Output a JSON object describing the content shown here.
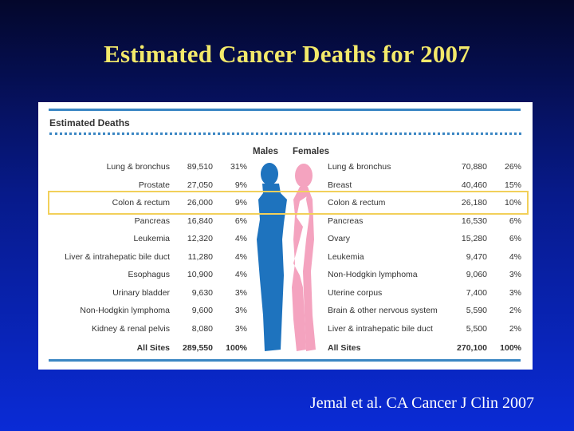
{
  "slide": {
    "title": "Estimated Cancer Deaths for 2007",
    "citation": "Jemal et al. CA Cancer J Clin 2007"
  },
  "chart_data": {
    "type": "table",
    "title": "Estimated Deaths",
    "columns": [
      "Males",
      "Females"
    ],
    "highlighted_row": "Colon & rectum",
    "colors": {
      "male_figure": "#1e73be",
      "female_figure": "#f4a3bf",
      "rule": "#3a86c3",
      "highlight": "#f2d05a"
    },
    "males": [
      {
        "site": "Lung & bronchus",
        "deaths": "89,510",
        "percent": "31%"
      },
      {
        "site": "Prostate",
        "deaths": "27,050",
        "percent": "9%"
      },
      {
        "site": "Colon & rectum",
        "deaths": "26,000",
        "percent": "9%"
      },
      {
        "site": "Pancreas",
        "deaths": "16,840",
        "percent": "6%"
      },
      {
        "site": "Leukemia",
        "deaths": "12,320",
        "percent": "4%"
      },
      {
        "site": "Liver & intrahepatic bile duct",
        "deaths": "11,280",
        "percent": "4%"
      },
      {
        "site": "Esophagus",
        "deaths": "10,900",
        "percent": "4%"
      },
      {
        "site": "Urinary bladder",
        "deaths": "9,630",
        "percent": "3%"
      },
      {
        "site": "Non-Hodgkin lymphoma",
        "deaths": "9,600",
        "percent": "3%"
      },
      {
        "site": "Kidney & renal pelvis",
        "deaths": "8,080",
        "percent": "3%"
      },
      {
        "site": "All Sites",
        "deaths": "289,550",
        "percent": "100%"
      }
    ],
    "females": [
      {
        "site": "Lung & bronchus",
        "deaths": "70,880",
        "percent": "26%"
      },
      {
        "site": "Breast",
        "deaths": "40,460",
        "percent": "15%"
      },
      {
        "site": "Colon & rectum",
        "deaths": "26,180",
        "percent": "10%"
      },
      {
        "site": "Pancreas",
        "deaths": "16,530",
        "percent": "6%"
      },
      {
        "site": "Ovary",
        "deaths": "15,280",
        "percent": "6%"
      },
      {
        "site": "Leukemia",
        "deaths": "9,470",
        "percent": "4%"
      },
      {
        "site": "Non-Hodgkin lymphoma",
        "deaths": "9,060",
        "percent": "3%"
      },
      {
        "site": "Uterine corpus",
        "deaths": "7,400",
        "percent": "3%"
      },
      {
        "site": "Brain & other nervous system",
        "deaths": "5,590",
        "percent": "2%"
      },
      {
        "site": "Liver & intrahepatic bile duct",
        "deaths": "5,500",
        "percent": "2%"
      },
      {
        "site": "All Sites",
        "deaths": "270,100",
        "percent": "100%"
      }
    ]
  }
}
